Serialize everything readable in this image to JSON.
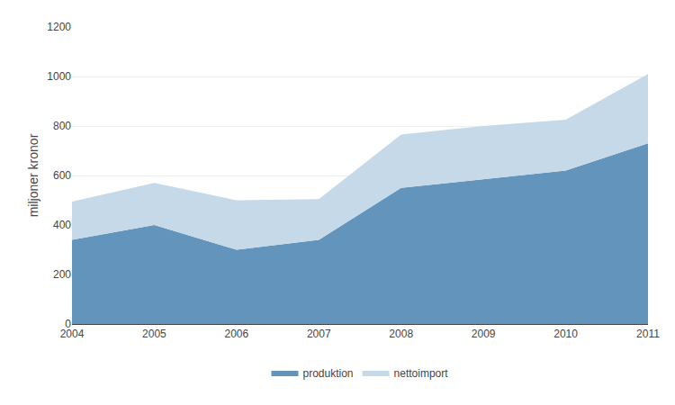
{
  "chart_data": {
    "type": "area",
    "stacked": true,
    "x": [
      2004,
      2005,
      2006,
      2007,
      2008,
      2009,
      2010,
      2011
    ],
    "series": [
      {
        "name": "produktion",
        "color": "#6394bc",
        "values": [
          340,
          400,
          300,
          340,
          550,
          585,
          620,
          730
        ]
      },
      {
        "name": "nettoimport",
        "color": "#c5d9e8",
        "values": [
          155,
          170,
          200,
          165,
          215,
          215,
          205,
          280
        ]
      }
    ],
    "ylabel": "miljoner kronor",
    "xlim": [
      2004,
      2011
    ],
    "xticks": [
      2004,
      2005,
      2006,
      2007,
      2008,
      2009,
      2010,
      2011
    ],
    "ylim": [
      0,
      1200
    ],
    "yticks": [
      0,
      200,
      400,
      600,
      800,
      1000,
      1200
    ],
    "grid": "y",
    "legend": "bottom"
  }
}
